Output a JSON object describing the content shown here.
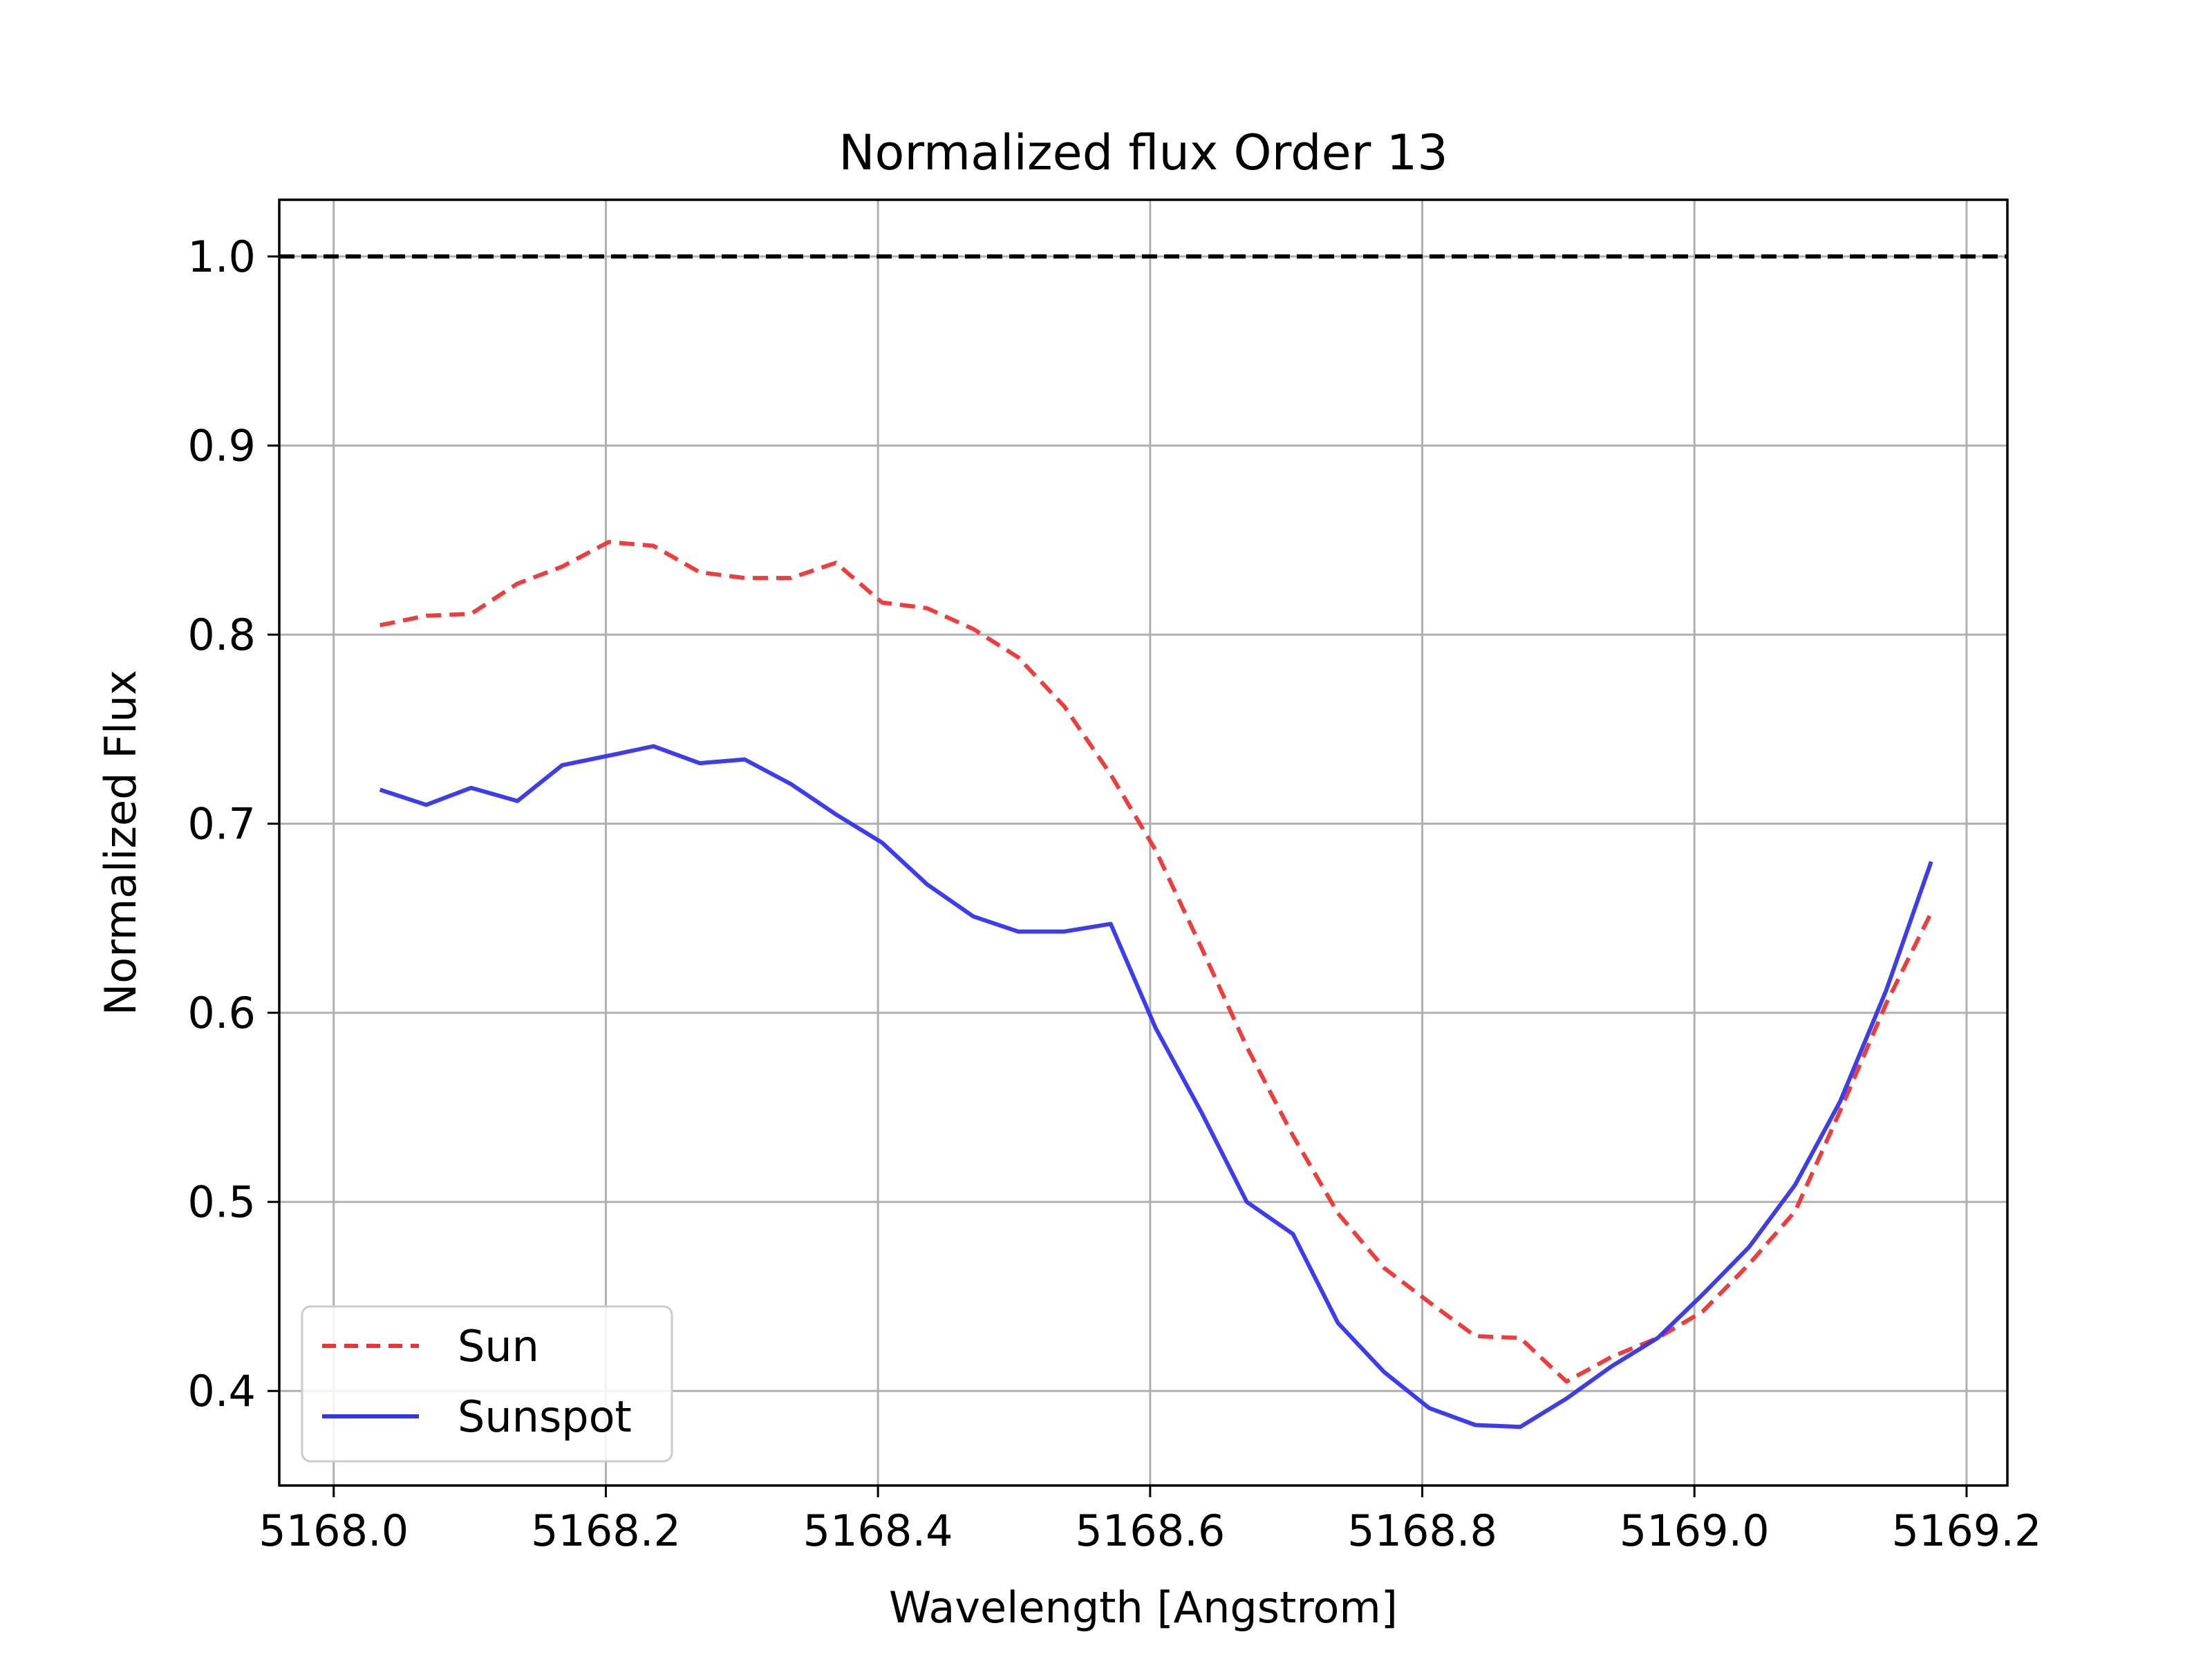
{
  "chart_data": {
    "type": "line",
    "title": "Normalized flux Order 13",
    "xlabel": "Wavelength [Angstrom]",
    "ylabel": "Normalized Flux",
    "xlim": [
      5167.96,
      5169.23
    ],
    "ylim": [
      0.35,
      1.03
    ],
    "xticks": [
      5168.0,
      5168.2,
      5168.4,
      5168.6,
      5168.8,
      5169.0,
      5169.2
    ],
    "xtick_labels": [
      "5168.0",
      "5168.2",
      "5168.4",
      "5168.6",
      "5168.8",
      "5169.0",
      "5169.2"
    ],
    "yticks": [
      0.4,
      0.5,
      0.6,
      0.7,
      0.8,
      0.9,
      1.0
    ],
    "ytick_labels": [
      "0.4",
      "0.5",
      "0.6",
      "0.7",
      "0.8",
      "0.9",
      "1.0"
    ],
    "grid": true,
    "legend_position": "lower-left",
    "reference_line": {
      "y": 1.0,
      "color": "#000000",
      "style": "dashed"
    },
    "series": [
      {
        "name": "Sun",
        "color": "#ee3333",
        "style": "dashed",
        "x": [
          5168.034,
          5168.068,
          5168.101,
          5168.135,
          5168.168,
          5168.202,
          5168.235,
          5168.269,
          5168.302,
          5168.336,
          5168.369,
          5168.403,
          5168.436,
          5168.47,
          5168.503,
          5168.537,
          5168.571,
          5168.604,
          5168.638,
          5168.671,
          5168.705,
          5168.738,
          5168.772,
          5168.805,
          5168.839,
          5168.872,
          5168.906,
          5168.939,
          5168.973,
          5169.006,
          5169.04,
          5169.074,
          5169.107,
          5169.141,
          5169.174
        ],
        "y": [
          0.805,
          0.81,
          0.811,
          0.827,
          0.836,
          0.849,
          0.847,
          0.833,
          0.83,
          0.83,
          0.838,
          0.817,
          0.814,
          0.803,
          0.788,
          0.762,
          0.726,
          0.686,
          0.634,
          0.582,
          0.535,
          0.494,
          0.465,
          0.447,
          0.429,
          0.428,
          0.405,
          0.418,
          0.428,
          0.442,
          0.467,
          0.495,
          0.548,
          0.605,
          0.653
        ]
      },
      {
        "name": "Sunspot",
        "color": "#3333ee",
        "style": "solid",
        "x": [
          5168.034,
          5168.068,
          5168.101,
          5168.135,
          5168.168,
          5168.202,
          5168.235,
          5168.269,
          5168.302,
          5168.336,
          5168.369,
          5168.403,
          5168.436,
          5168.47,
          5168.503,
          5168.537,
          5168.571,
          5168.604,
          5168.638,
          5168.671,
          5168.705,
          5168.738,
          5168.772,
          5168.805,
          5168.839,
          5168.872,
          5168.906,
          5168.939,
          5168.973,
          5169.006,
          5169.04,
          5169.074,
          5169.107,
          5169.141,
          5169.174
        ],
        "y": [
          0.718,
          0.71,
          0.719,
          0.712,
          0.731,
          0.736,
          0.741,
          0.732,
          0.734,
          0.721,
          0.705,
          0.69,
          0.668,
          0.651,
          0.643,
          0.643,
          0.647,
          0.592,
          0.547,
          0.5,
          0.483,
          0.436,
          0.41,
          0.391,
          0.382,
          0.381,
          0.396,
          0.413,
          0.428,
          0.451,
          0.476,
          0.509,
          0.553,
          0.612,
          0.68
        ]
      }
    ]
  }
}
